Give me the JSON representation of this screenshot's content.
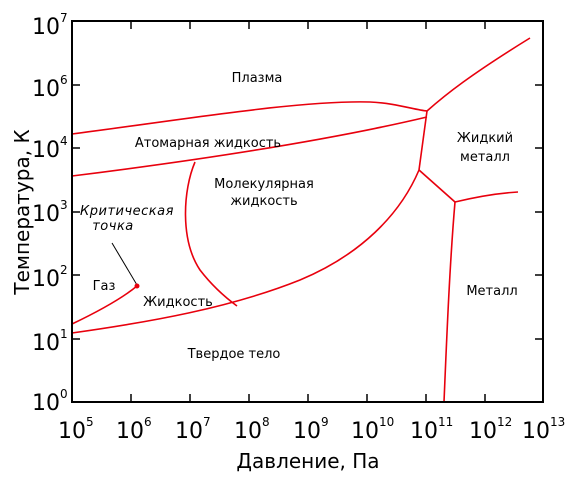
{
  "axes": {
    "x_title": "Давление, Па",
    "y_title": "Температура, К",
    "base": "10",
    "x_exponents": [
      "5",
      "6",
      "7",
      "8",
      "9",
      "10",
      "11",
      "12",
      "13"
    ],
    "y_exponents": [
      "0",
      "1",
      "2",
      "3",
      "4",
      "5",
      "6",
      "7"
    ]
  },
  "regions": {
    "plasma": "Плазма",
    "atomic_liquid": "Атомарная жидкость",
    "liquid_metal_1": "Жидкий",
    "liquid_metal_2": "металл",
    "molecular_liquid_1": "Молекулярная",
    "molecular_liquid_2": "жидкость",
    "critical_point_1": "Критическая",
    "critical_point_2": "точка",
    "gas": "Газ",
    "liquid": "Жидкость",
    "metal": "Металл",
    "solid": "Твердое тело"
  },
  "colors": {
    "curve": "#e8000d",
    "frame": "#000000"
  }
}
